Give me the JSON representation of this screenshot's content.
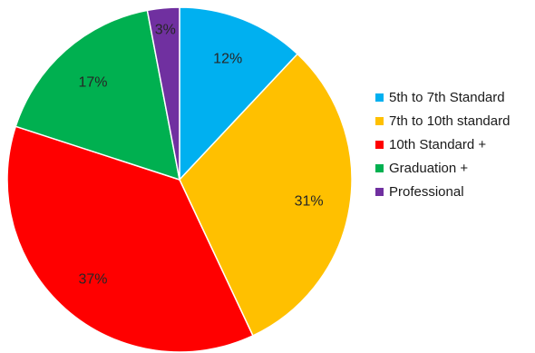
{
  "chart_data": {
    "type": "pie",
    "title": "",
    "legend_position": "right",
    "slices": [
      {
        "label": "5th to 7th Standard",
        "value": 12,
        "display": "12%",
        "color": "#00B0F0"
      },
      {
        "label": "7th to 10th standard",
        "value": 31,
        "display": "31%",
        "color": "#FFC000"
      },
      {
        "label": "10th Standard +",
        "value": 37,
        "display": "37%",
        "color": "#FF0000"
      },
      {
        "label": "Graduation +",
        "value": 17,
        "display": "17%",
        "color": "#00B050"
      },
      {
        "label": "Professional",
        "value": 3,
        "display": "3%",
        "color": "#7030A0"
      }
    ]
  }
}
